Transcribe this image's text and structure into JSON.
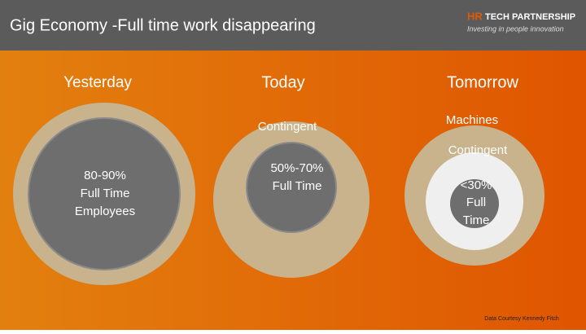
{
  "header": {
    "title": "Gig Economy -Full time work disappearing",
    "logo": {
      "brand_a": "HR",
      "brand_b": "TECH PARTNERSHIP",
      "tagline": "Investing in people innovation"
    }
  },
  "columns": [
    {
      "heading": "Yesterday",
      "core": [
        "80-90%",
        "Full Time",
        "Employees"
      ]
    },
    {
      "heading": "Today",
      "outer": "Contingent",
      "core": [
        "50%-70%",
        "Full Time"
      ]
    },
    {
      "heading": "Tomorrow",
      "outer": "Machines",
      "middle": "Contingent",
      "core": [
        "<30%",
        "Full",
        "Time"
      ]
    }
  ],
  "footer": "Data Courtesy Kennedy Fitch"
}
